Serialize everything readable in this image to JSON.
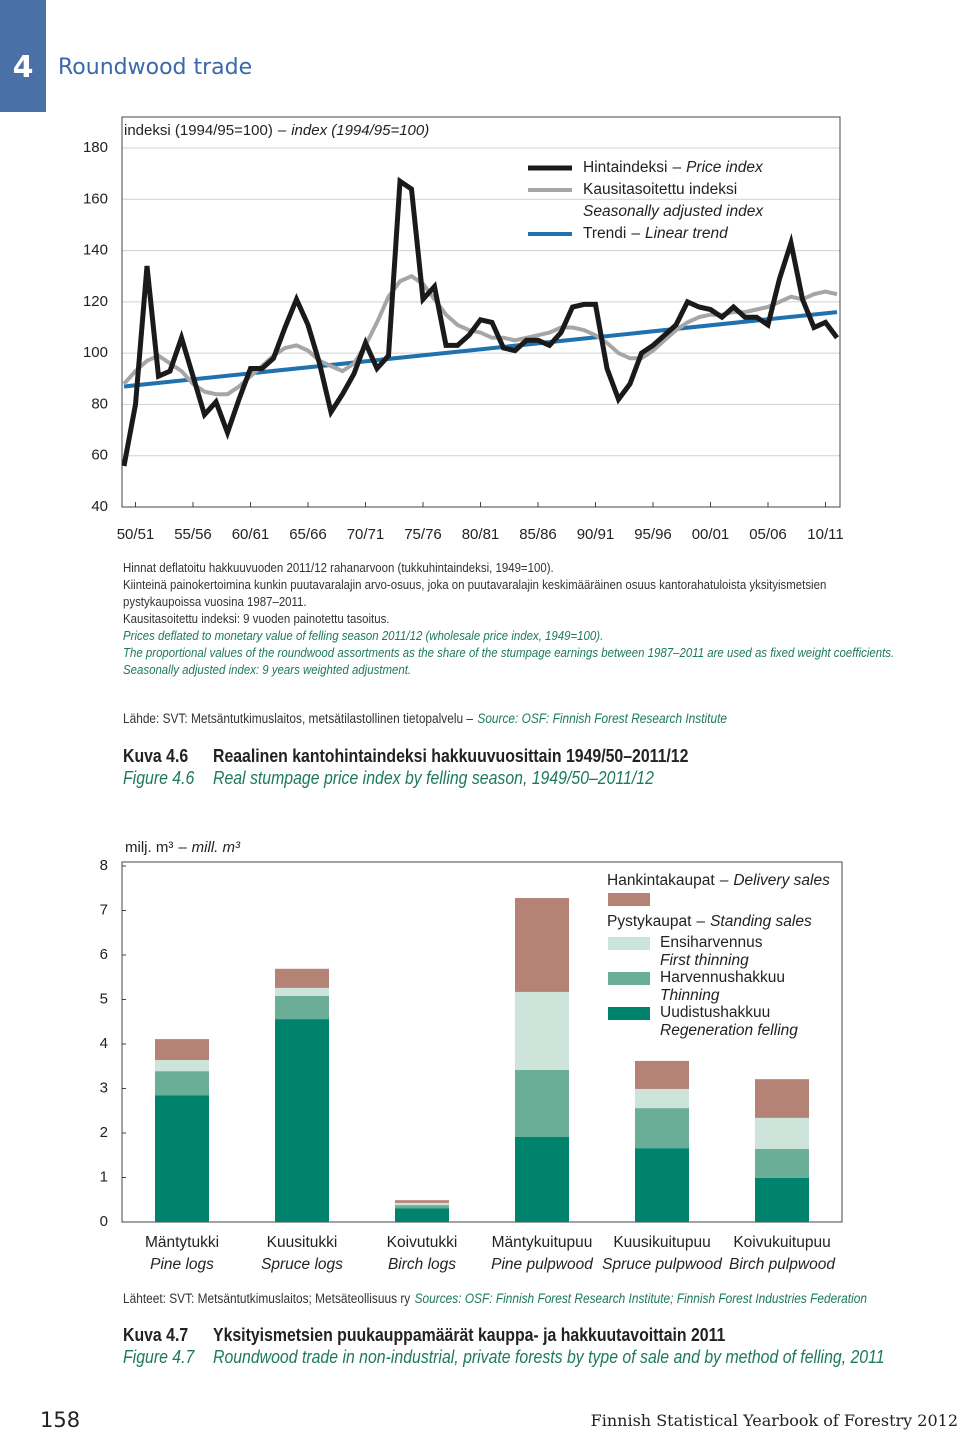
{
  "header": {
    "chapter": "4",
    "title": "Roundwood trade"
  },
  "chart_data": [
    {
      "type": "line",
      "ylabel": "indeksi (1994/95=100)",
      "ylabel_en": "index (1994/95=100)",
      "separator": "–",
      "x": [
        1949,
        1950,
        1951,
        1952,
        1953,
        1954,
        1955,
        1956,
        1957,
        1958,
        1959,
        1960,
        1961,
        1962,
        1963,
        1964,
        1965,
        1966,
        1967,
        1968,
        1969,
        1970,
        1971,
        1972,
        1973,
        1974,
        1975,
        1976,
        1977,
        1978,
        1979,
        1980,
        1981,
        1982,
        1983,
        1984,
        1985,
        1986,
        1987,
        1988,
        1989,
        1990,
        1991,
        1992,
        1993,
        1994,
        1995,
        1996,
        1997,
        1998,
        1999,
        2000,
        2001,
        2002,
        2003,
        2004,
        2005,
        2006,
        2007,
        2008,
        2009,
        2010,
        2011
      ],
      "xlim": [
        1949,
        2011
      ],
      "xticks": [
        {
          "value": 1950,
          "label": "50/51"
        },
        {
          "value": 1955,
          "label": "55/56"
        },
        {
          "value": 1960,
          "label": "60/61"
        },
        {
          "value": 1965,
          "label": "65/66"
        },
        {
          "value": 1970,
          "label": "70/71"
        },
        {
          "value": 1975,
          "label": "75/76"
        },
        {
          "value": 1980,
          "label": "80/81"
        },
        {
          "value": 1985,
          "label": "85/86"
        },
        {
          "value": 1990,
          "label": "90/91"
        },
        {
          "value": 1995,
          "label": "95/96"
        },
        {
          "value": 2000,
          "label": "00/01"
        },
        {
          "value": 2005,
          "label": "05/06"
        },
        {
          "value": 2010,
          "label": "10/11"
        }
      ],
      "ylim": [
        40,
        180
      ],
      "yticks": [
        40,
        60,
        80,
        100,
        120,
        140,
        160,
        180
      ],
      "grid": true,
      "series": [
        {
          "name": "Hintaindeksi",
          "name_en": "Price index",
          "color": "#1a1a1a",
          "values": [
            56,
            80,
            134,
            91,
            93,
            106,
            91,
            76,
            81,
            69,
            82,
            94,
            94,
            98,
            110,
            121,
            111,
            96,
            77,
            84,
            92,
            104,
            94,
            99,
            167,
            164,
            121,
            126,
            103,
            103,
            107,
            113,
            112,
            102,
            101,
            105,
            105,
            103,
            108,
            118,
            119,
            119,
            94,
            82,
            88,
            100,
            103,
            107,
            111,
            120,
            118,
            117,
            114,
            118,
            114,
            114,
            111,
            129,
            143,
            121,
            110,
            112,
            106
          ]
        },
        {
          "name": "Kausitasoitettu indeksi",
          "name_en": "Seasonally adjusted index",
          "color": "#a6a6a6",
          "values": [
            88,
            93,
            97,
            99,
            96,
            93,
            88,
            85,
            84,
            84,
            87,
            91,
            95,
            99,
            102,
            103,
            101,
            97,
            95,
            93,
            96,
            103,
            112,
            122,
            128,
            130,
            127,
            121,
            115,
            111,
            109,
            108,
            106,
            106,
            105,
            106,
            107,
            108,
            110,
            110,
            109,
            107,
            104,
            100,
            98,
            98,
            101,
            105,
            109,
            112,
            114,
            115,
            115,
            116,
            116,
            117,
            118,
            120,
            122,
            121,
            123,
            124,
            123
          ]
        },
        {
          "name": "Trendi",
          "name_en": "Linear trend",
          "color": "#1f72ae",
          "x": [
            1949,
            2011
          ],
          "values": [
            87,
            116
          ]
        }
      ],
      "notes": [
        "Hinnat deflatoitu hakkuuvuoden 2011/12 rahanarvoon (tukkuhintaindeksi, 1949=100).",
        "Kiinteinä painokertoimina kunkin puutavaralajin arvo-osuus, joka on puutavaralajin keskimääräinen osuus kantorahatuloista yksityismetsien pystykaupoissa vuosina 1987–2011.",
        "Kausitasoitettu indeksi: 9 vuoden painotettu tasoitus."
      ],
      "notes_en": [
        "Prices deflated to monetary value of felling season 2011/12 (wholesale price index, 1949=100).",
        "The proportional values of the roundwood assortments as the share of the stumpage earnings between 1987–2011 are used as fixed weight coefficients.",
        "Seasonally adjusted index: 9 years weighted adjustment."
      ],
      "source": "Lähde: SVT: Metsäntutkimuslaitos, metsätilastollinen tietopalvelu –",
      "source_en": "Source: OSF: Finnish Forest Research Institute",
      "caption": {
        "label": "Kuva 4.6",
        "title": "Reaalinen kantohintaindeksi hakkuuvuosittain 1949/50–2011/12"
      },
      "caption_en": {
        "label": "Figure 4.6",
        "title": "Real stumpage price index by felling season, 1949/50–2011/12"
      }
    },
    {
      "type": "bar",
      "stacked": true,
      "ylabel": "milj. m³",
      "ylabel_en": "mill. m³",
      "separator": "–",
      "categories": [
        "Mäntytukki",
        "Kuusitukki",
        "Koivutukki",
        "Mäntykuitupuu",
        "Kuusikuitupuu",
        "Koivukuitupuu"
      ],
      "categories_en": [
        "Pine logs",
        "Spruce logs",
        "Birch logs",
        "Pine pulpwood",
        "Spruce pulpwood",
        "Birch pulpwood"
      ],
      "ylim": [
        0,
        8
      ],
      "yticks": [
        0,
        1,
        2,
        3,
        4,
        5,
        6,
        7,
        8
      ],
      "grid": false,
      "series": [
        {
          "name": "Uudistushakkuu",
          "name_en": "Regeneration felling",
          "color": "#00836c",
          "values": [
            2.85,
            4.56,
            0.31,
            1.91,
            1.66,
            0.99
          ]
        },
        {
          "name": "Harvennushakkuu",
          "name_en": "Thinning",
          "color": "#6bae98",
          "values": [
            0.54,
            0.52,
            0.07,
            1.51,
            0.9,
            0.65
          ]
        },
        {
          "name": "Ensiharvennus",
          "name_en": "First thinning",
          "color": "#cde4da",
          "values": [
            0.25,
            0.18,
            0.05,
            1.75,
            0.43,
            0.7
          ]
        },
        {
          "name": "Hankintakaupat",
          "name_en": "Delivery sales",
          "color": "#b58276",
          "values": [
            0.47,
            0.43,
            0.06,
            2.11,
            0.63,
            0.87
          ]
        }
      ],
      "legend_heading": "Pystykaupat",
      "legend_heading_en": "Standing sales",
      "source": "Lähteet: SVT: Metsäntutkimuslaitos; Metsäteollisuus ry",
      "source_en": "Sources: OSF: Finnish Forest Research Institute; Finnish Forest Industries Federation",
      "caption": {
        "label": "Kuva 4.7",
        "title": "Yksityismetsien puukauppamäärät kauppa- ja hakkuutavoittain 2011"
      },
      "caption_en": {
        "label": "Figure 4.7",
        "title": "Roundwood trade in non-industrial, private forests by type of sale and by method of felling, 2011"
      }
    }
  ],
  "footer": {
    "page": "158",
    "publication": "Finnish Statistical Yearbook of Forestry 2012"
  }
}
